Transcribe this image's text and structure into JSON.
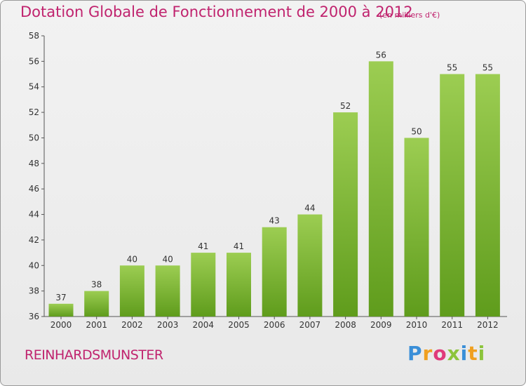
{
  "header": {
    "title": "Dotation Globale de Fonctionnement de 2000 à 2012",
    "unit": "(en milliers d'€)"
  },
  "footer": {
    "commune": "REINHARDSMUNSTER",
    "logo_letters": [
      "P",
      "r",
      "o",
      "x",
      "i",
      "t",
      "i"
    ],
    "logo_colors": [
      "#3a8fd8",
      "#f0a020",
      "#e03a7a",
      "#8cc43c",
      "#3a8fd8",
      "#f0a020",
      "#8cc43c"
    ]
  },
  "colors": {
    "bar_light": "#9ccd52",
    "bar_dark": "#5f9c1c",
    "accent": "#c0236e"
  },
  "chart_data": {
    "type": "bar",
    "title": "Dotation Globale de Fonctionnement de 2000 à 2012",
    "subtitle": "(en milliers d'€)",
    "categories": [
      "2000",
      "2001",
      "2002",
      "2003",
      "2004",
      "2005",
      "2006",
      "2007",
      "2008",
      "2009",
      "2010",
      "2011",
      "2012"
    ],
    "values": [
      37,
      38,
      40,
      40,
      41,
      41,
      43,
      44,
      52,
      56,
      50,
      55,
      55
    ],
    "ylim": [
      36,
      58
    ],
    "yticks": [
      36,
      38,
      40,
      42,
      44,
      46,
      48,
      50,
      52,
      54,
      56,
      58
    ],
    "grid": false,
    "legend": "none"
  }
}
